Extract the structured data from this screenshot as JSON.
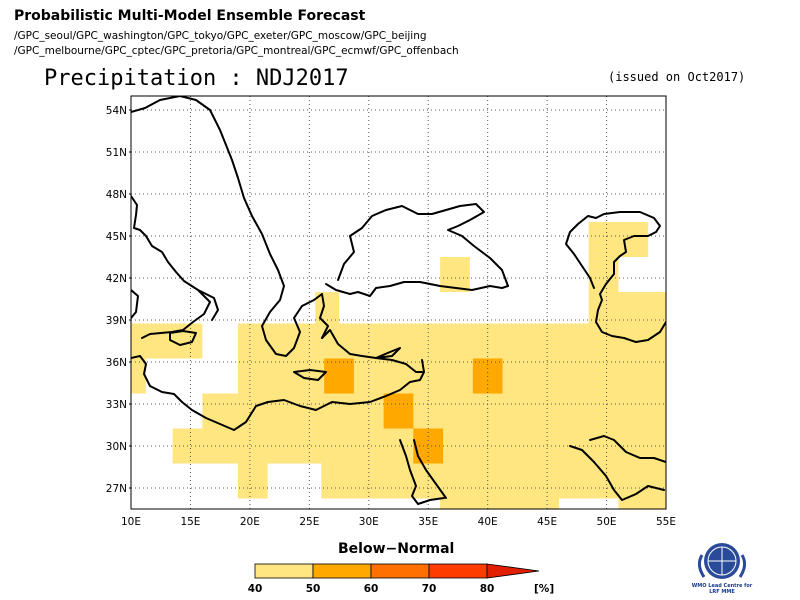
{
  "header": {
    "title": "Probabilistic Multi-Model Ensemble Forecast",
    "models_line1": "/GPC_seoul/GPC_washington/GPC_tokyo/GPC_exeter/GPC_moscow/GPC_beijing",
    "models_line2": "/GPC_melbourne/GPC_cptec/GPC_pretoria/GPC_montreal/GPC_ecmwf/GPC_offenbach"
  },
  "map": {
    "title": "Precipitation : NDJ2017",
    "issued": "(issued on Oct2017)",
    "lon_ticks": [
      "10E",
      "15E",
      "20E",
      "25E",
      "30E",
      "35E",
      "40E",
      "45E",
      "50E",
      "55E"
    ],
    "lat_ticks": [
      "54N",
      "51N",
      "48N",
      "45N",
      "42N",
      "39N",
      "36N",
      "33N",
      "30N",
      "27N"
    ],
    "lon_range": [
      10,
      55
    ],
    "lat_range": [
      25.5,
      55
    ],
    "grid": "dotted, 5° longitude x 3° latitude"
  },
  "legend": {
    "title": "Below−Normal",
    "ticks": [
      "40",
      "50",
      "60",
      "70",
      "80"
    ],
    "unit": "[%]",
    "colors": [
      "#ffe680",
      "#ffa800",
      "#ff7000",
      "#ff3c00",
      "#e11e00"
    ]
  },
  "logo": {
    "org": "WMO Lead Centre for LRF MME"
  },
  "chart_data": {
    "type": "heatmap",
    "variable": "probability of below-normal precipitation",
    "cell_size_deg": 2.5,
    "classes": [
      {
        "range": "40-50",
        "color": "#ffe680"
      },
      {
        "range": "50-60",
        "color": "#ffa800"
      }
    ],
    "cells": [
      {
        "lon": 10,
        "lat": 36.25,
        "lon2": 16,
        "lat2": 38.75,
        "cls": 0
      },
      {
        "lon": 10,
        "lat": 33.75,
        "lon2": 11.25,
        "lat2": 36.25,
        "cls": 0
      },
      {
        "lon": 19,
        "lat": 36.25,
        "lon2": 26,
        "lat2": 38.75,
        "cls": 0
      },
      {
        "lon": 25.5,
        "lat": 38.75,
        "lon2": 27.5,
        "lat2": 41,
        "cls": 0
      },
      {
        "lon": 26,
        "lat": 36.25,
        "lon2": 55,
        "lat2": 38.75,
        "cls": 0
      },
      {
        "lon": 19,
        "lat": 33.75,
        "lon2": 55,
        "lat2": 36.25,
        "cls": 0
      },
      {
        "lon": 16,
        "lat": 31.25,
        "lon2": 55,
        "lat2": 33.75,
        "cls": 0
      },
      {
        "lon": 13.5,
        "lat": 28.75,
        "lon2": 55,
        "lat2": 31.25,
        "cls": 0
      },
      {
        "lon": 19,
        "lat": 26.25,
        "lon2": 21.5,
        "lat2": 28.75,
        "cls": 0
      },
      {
        "lon": 26,
        "lat": 26.25,
        "lon2": 55,
        "lat2": 28.75,
        "cls": 0
      },
      {
        "lon": 36,
        "lat": 25.5,
        "lon2": 46,
        "lat2": 26.25,
        "cls": 0
      },
      {
        "lon": 51,
        "lat": 25.5,
        "lon2": 55,
        "lat2": 26.25,
        "cls": 0
      },
      {
        "lon": 36,
        "lat": 41,
        "lon2": 38.5,
        "lat2": 43.5,
        "cls": 0
      },
      {
        "lon": 48.5,
        "lat": 43.5,
        "lon2": 53.5,
        "lat2": 46,
        "cls": 0
      },
      {
        "lon": 48.5,
        "lat": 41,
        "lon2": 51,
        "lat2": 43.5,
        "cls": 0
      },
      {
        "lon": 48.5,
        "lat": 38.75,
        "lon2": 55,
        "lat2": 41,
        "cls": 0
      },
      {
        "lon": 26.25,
        "lat": 33.75,
        "lon2": 28.75,
        "lat2": 36.25,
        "cls": 1
      },
      {
        "lon": 31.25,
        "lat": 31.25,
        "lon2": 33.75,
        "lat2": 33.75,
        "cls": 1
      },
      {
        "lon": 33.75,
        "lat": 28.75,
        "lon2": 36.25,
        "lat2": 31.25,
        "cls": 1
      },
      {
        "lon": 38.75,
        "lat": 33.75,
        "lon2": 41.25,
        "lat2": 36.25,
        "cls": 1
      }
    ]
  }
}
